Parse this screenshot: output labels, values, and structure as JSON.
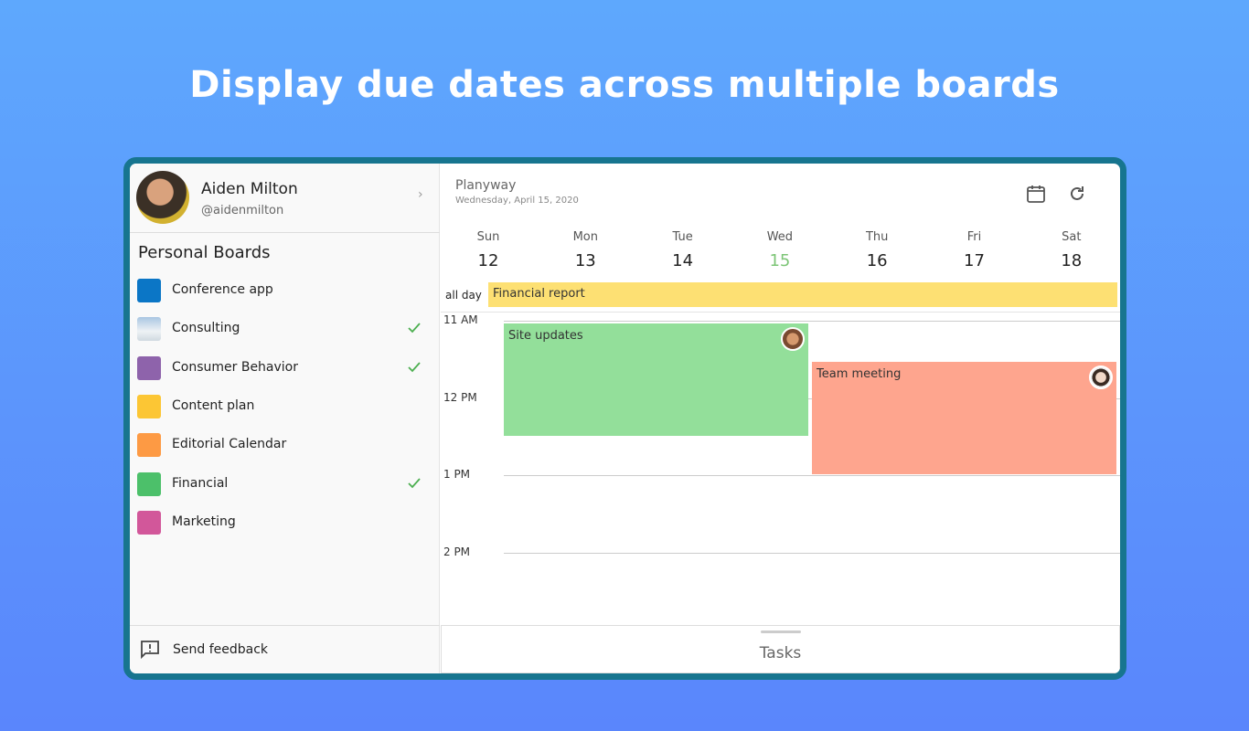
{
  "headline": "Display due dates across multiple boards",
  "profile": {
    "name": "Aiden Milton",
    "handle": "@aidenmilton"
  },
  "boards": {
    "title": "Personal Boards",
    "items": [
      {
        "name": "Conference app",
        "color": "#0b76c6",
        "checked": false
      },
      {
        "name": "Consulting",
        "color": "#c9d8e6",
        "checked": true
      },
      {
        "name": "Consumer Behavior",
        "color": "#8e63ab",
        "checked": true
      },
      {
        "name": "Content plan",
        "color": "#fcc634",
        "checked": false
      },
      {
        "name": "Editorial Calendar",
        "color": "#fd9a44",
        "checked": false
      },
      {
        "name": "Financial",
        "color": "#4cc06a",
        "checked": true
      },
      {
        "name": "Marketing",
        "color": "#d2579a",
        "checked": false
      }
    ]
  },
  "feedback": "Send feedback",
  "calendar": {
    "app": "Planyway",
    "date": "Wednesday, April 15, 2020",
    "days": [
      {
        "name": "Sun",
        "date": 12
      },
      {
        "name": "Mon",
        "date": 13
      },
      {
        "name": "Tue",
        "date": 14
      },
      {
        "name": "Wed",
        "date": 15
      },
      {
        "name": "Thu",
        "date": 16
      },
      {
        "name": "Fri",
        "date": 17
      },
      {
        "name": "Sat",
        "date": 18
      }
    ],
    "all_day_label": "all day",
    "all_day_event": {
      "name": "Financial report",
      "color": "#fde073"
    },
    "times": [
      "11 AM",
      "12 PM",
      "1 PM",
      "2 PM"
    ],
    "events": [
      {
        "name": "Site updates",
        "color": "#93df9a"
      },
      {
        "name": "Team meeting",
        "color": "#fea58e"
      }
    ]
  },
  "tasks": "Tasks"
}
